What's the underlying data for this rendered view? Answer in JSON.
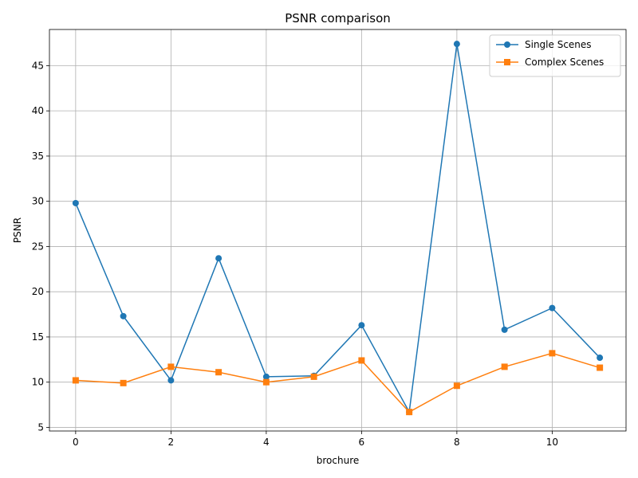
{
  "chart_data": {
    "type": "line",
    "title": "PSNR comparison",
    "xlabel": "brochure",
    "ylabel": "PSNR",
    "x": [
      0,
      1,
      2,
      3,
      4,
      5,
      6,
      7,
      8,
      9,
      10,
      11
    ],
    "xlim": [
      -0.55,
      11.55
    ],
    "ylim": [
      4.6,
      49.0
    ],
    "xticks": [
      0,
      2,
      4,
      6,
      8,
      10
    ],
    "yticks": [
      5,
      10,
      15,
      20,
      25,
      30,
      35,
      40,
      45
    ],
    "grid": true,
    "legend_position": "top-right",
    "series": [
      {
        "name": " Single Scenes",
        "color": "#1f77b4",
        "marker": "circle",
        "values": [
          29.8,
          17.3,
          10.2,
          23.7,
          10.6,
          10.7,
          16.3,
          6.7,
          47.4,
          15.8,
          18.2,
          12.7
        ]
      },
      {
        "name": "Complex Scenes",
        "color": "#ff7f0e",
        "marker": "square",
        "values": [
          10.2,
          9.9,
          11.7,
          11.1,
          10.0,
          10.6,
          12.4,
          6.7,
          9.6,
          11.7,
          13.2,
          11.6
        ]
      }
    ]
  }
}
